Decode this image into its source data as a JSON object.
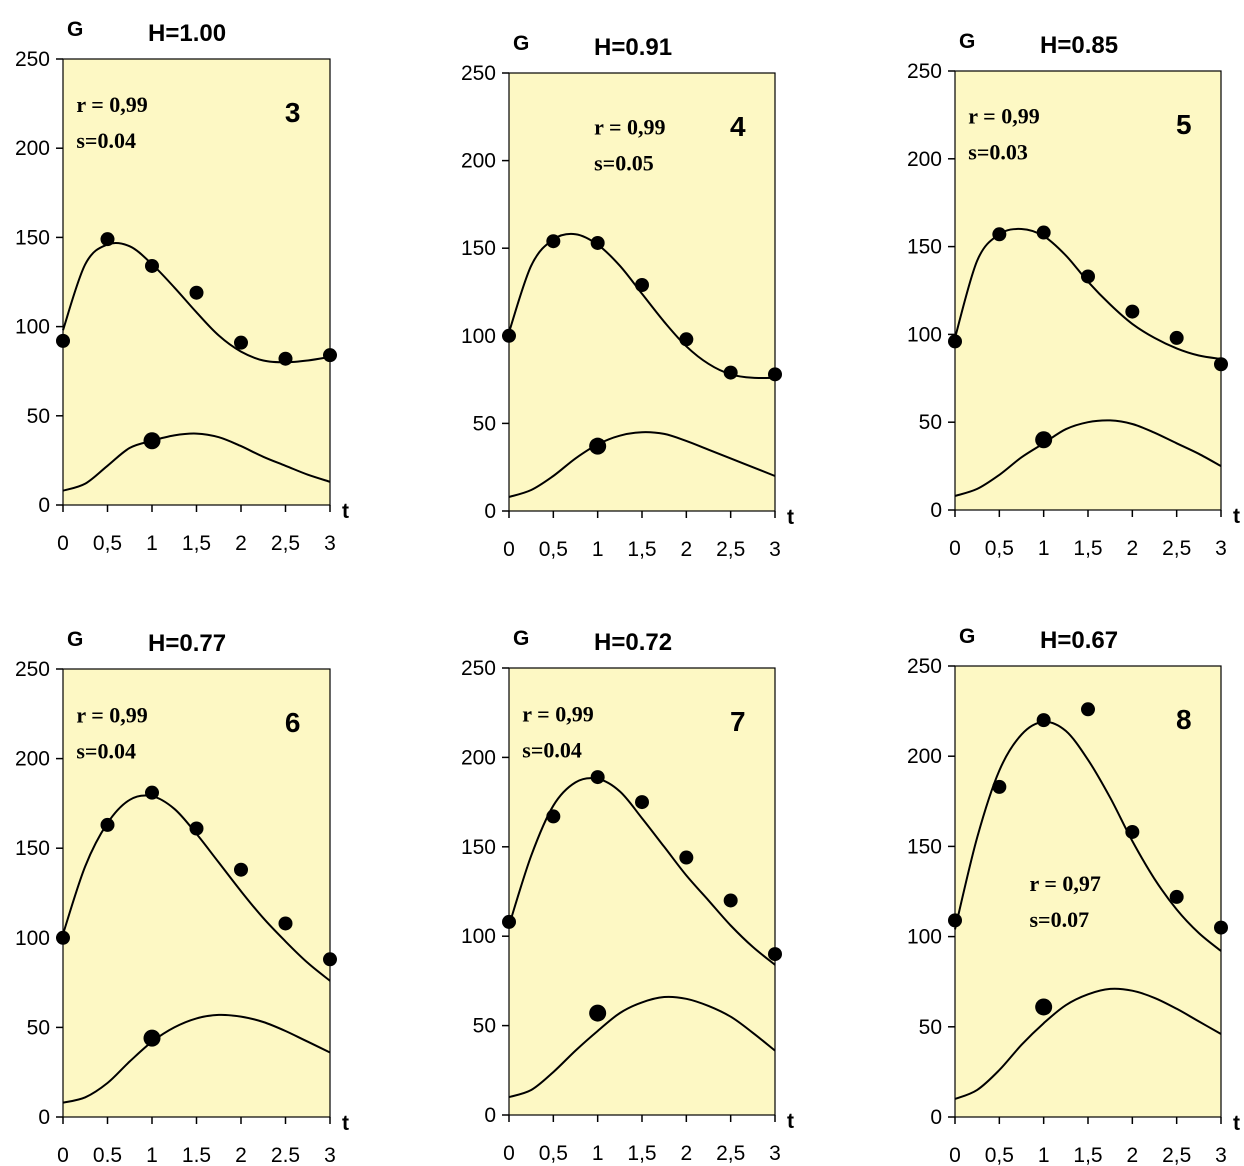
{
  "chart_data": [
    {
      "type": "line",
      "title": "H=1.00",
      "ylabel": "G",
      "xlabel": "t",
      "panel_number": "3",
      "stats": {
        "r": "r = 0,99",
        "s": "s=0.04"
      },
      "xlim": [
        0,
        3
      ],
      "ylim": [
        0,
        250
      ],
      "x_ticks": [
        "0",
        "0,5",
        "1",
        "1,5",
        "2",
        "2,5",
        "3"
      ],
      "y_ticks": [
        "0",
        "50",
        "100",
        "150",
        "200",
        "250"
      ],
      "grid": false,
      "series": [
        {
          "x": [
            0,
            0.5,
            1,
            1.5,
            2,
            2.5,
            3
          ],
          "values": [
            92,
            149,
            134,
            119,
            91,
            82,
            84
          ]
        },
        {
          "x": [
            1
          ],
          "values": [
            36
          ]
        }
      ],
      "curves": [
        {
          "x": [
            0,
            0.25,
            0.5,
            0.75,
            1,
            1.25,
            1.5,
            1.75,
            2,
            2.25,
            2.5,
            2.75,
            3
          ],
          "values": [
            98,
            135,
            146,
            145,
            135,
            122,
            108,
            95,
            86,
            81,
            80,
            81,
            83
          ]
        },
        {
          "x": [
            0,
            0.25,
            0.5,
            0.75,
            1,
            1.25,
            1.5,
            1.75,
            2,
            2.25,
            2.5,
            2.75,
            3
          ],
          "values": [
            8,
            12,
            22,
            32,
            36,
            39,
            40,
            38,
            33,
            27,
            22,
            17,
            13
          ]
        }
      ]
    },
    {
      "type": "line",
      "title": "H=0.91",
      "ylabel": "G",
      "xlabel": "t",
      "panel_number": "4",
      "stats": {
        "r": "r = 0,99",
        "s": "s=0.05"
      },
      "xlim": [
        0,
        3
      ],
      "ylim": [
        0,
        250
      ],
      "x_ticks": [
        "0",
        "0,5",
        "1",
        "1,5",
        "2",
        "2,5",
        "3"
      ],
      "y_ticks": [
        "0",
        "50",
        "100",
        "150",
        "200",
        "250"
      ],
      "grid": false,
      "series": [
        {
          "x": [
            0,
            0.5,
            1,
            1.5,
            2,
            2.5,
            3
          ],
          "values": [
            100,
            154,
            153,
            129,
            98,
            79,
            78
          ]
        },
        {
          "x": [
            1
          ],
          "values": [
            37
          ]
        }
      ],
      "curves": [
        {
          "x": [
            0,
            0.25,
            0.5,
            0.75,
            1,
            1.25,
            1.5,
            1.75,
            2,
            2.25,
            2.5,
            2.75,
            3
          ],
          "values": [
            102,
            140,
            155,
            158,
            152,
            140,
            124,
            108,
            94,
            84,
            78,
            76,
            76
          ]
        },
        {
          "x": [
            0,
            0.25,
            0.5,
            0.75,
            1,
            1.25,
            1.5,
            1.75,
            2,
            2.25,
            2.5,
            2.75,
            3
          ],
          "values": [
            8,
            12,
            20,
            30,
            38,
            43,
            45,
            44,
            40,
            35,
            30,
            25,
            20
          ]
        }
      ]
    },
    {
      "type": "line",
      "title": "H=0.85",
      "ylabel": "G",
      "xlabel": "t",
      "panel_number": "5",
      "stats": {
        "r": "r = 0,99",
        "s": "s=0.03"
      },
      "xlim": [
        0,
        3
      ],
      "ylim": [
        0,
        250
      ],
      "x_ticks": [
        "0",
        "0,5",
        "1",
        "1,5",
        "2",
        "2,5",
        "3"
      ],
      "y_ticks": [
        "0",
        "50",
        "100",
        "150",
        "200",
        "250"
      ],
      "grid": false,
      "series": [
        {
          "x": [
            0,
            0.5,
            1,
            1.5,
            2,
            2.5,
            3
          ],
          "values": [
            96,
            157,
            158,
            133,
            113,
            98,
            83
          ]
        },
        {
          "x": [
            1
          ],
          "values": [
            40
          ]
        }
      ],
      "curves": [
        {
          "x": [
            0,
            0.25,
            0.5,
            0.75,
            1,
            1.25,
            1.5,
            1.75,
            2,
            2.25,
            2.5,
            2.75,
            3
          ],
          "values": [
            98,
            142,
            157,
            160,
            156,
            145,
            130,
            117,
            106,
            98,
            92,
            88,
            86
          ]
        },
        {
          "x": [
            0,
            0.25,
            0.5,
            0.75,
            1,
            1.25,
            1.5,
            1.75,
            2,
            2.25,
            2.5,
            2.75,
            3
          ],
          "values": [
            8,
            12,
            20,
            30,
            38,
            46,
            50,
            51,
            49,
            44,
            38,
            32,
            25
          ]
        }
      ]
    },
    {
      "type": "line",
      "title": "H=0.77",
      "ylabel": "G",
      "xlabel": "t",
      "panel_number": "6",
      "stats": {
        "r": "r = 0,99",
        "s": "s=0.04"
      },
      "xlim": [
        0,
        3
      ],
      "ylim": [
        0,
        250
      ],
      "x_ticks": [
        "0",
        "0.5",
        "1",
        "1.5",
        "2",
        "2.5",
        "3"
      ],
      "y_ticks": [
        "0",
        "50",
        "100",
        "150",
        "200",
        "250"
      ],
      "grid": false,
      "series": [
        {
          "x": [
            0,
            0.5,
            1,
            1.5,
            2,
            2.5,
            3
          ],
          "values": [
            100,
            163,
            181,
            161,
            138,
            108,
            88
          ]
        },
        {
          "x": [
            1
          ],
          "values": [
            44
          ]
        }
      ],
      "curves": [
        {
          "x": [
            0,
            0.25,
            0.5,
            0.75,
            1,
            1.25,
            1.5,
            1.75,
            2,
            2.25,
            2.5,
            2.75,
            3
          ],
          "values": [
            102,
            140,
            164,
            177,
            179,
            172,
            158,
            142,
            126,
            111,
            98,
            86,
            76
          ]
        },
        {
          "x": [
            0,
            0.25,
            0.5,
            0.75,
            1,
            1.25,
            1.5,
            1.75,
            2,
            2.25,
            2.5,
            2.75,
            3
          ],
          "values": [
            8,
            11,
            19,
            31,
            42,
            50,
            55,
            57,
            56,
            53,
            48,
            42,
            36
          ]
        }
      ]
    },
    {
      "type": "line",
      "title": "H=0.72",
      "ylabel": "G",
      "xlabel": "t",
      "panel_number": "7",
      "stats": {
        "r": "r = 0,99",
        "s": "s=0.04"
      },
      "xlim": [
        0,
        3
      ],
      "ylim": [
        0,
        250
      ],
      "x_ticks": [
        "0",
        "0,5",
        "1",
        "1,5",
        "2",
        "2,5",
        "3"
      ],
      "y_ticks": [
        "0",
        "50",
        "100",
        "150",
        "200",
        "250"
      ],
      "grid": false,
      "series": [
        {
          "x": [
            0,
            0.5,
            1,
            1.5,
            2,
            2.5,
            3
          ],
          "values": [
            108,
            167,
            189,
            175,
            144,
            120,
            90
          ]
        },
        {
          "x": [
            1
          ],
          "values": [
            57
          ]
        }
      ],
      "curves": [
        {
          "x": [
            0,
            0.25,
            0.5,
            0.75,
            1,
            1.25,
            1.5,
            1.75,
            2,
            2.25,
            2.5,
            2.75,
            3
          ],
          "values": [
            106,
            145,
            173,
            186,
            188,
            181,
            166,
            150,
            134,
            120,
            106,
            94,
            84
          ]
        },
        {
          "x": [
            0,
            0.25,
            0.5,
            0.75,
            1,
            1.25,
            1.5,
            1.75,
            2,
            2.25,
            2.5,
            2.75,
            3
          ],
          "values": [
            10,
            14,
            24,
            36,
            47,
            57,
            63,
            66,
            65,
            61,
            55,
            46,
            36
          ]
        }
      ]
    },
    {
      "type": "line",
      "title": "H=0.67",
      "ylabel": "G",
      "xlabel": "t",
      "panel_number": "8",
      "stats": {
        "r": "r = 0,97",
        "s": "s=0.07"
      },
      "xlim": [
        0,
        3
      ],
      "ylim": [
        0,
        250
      ],
      "x_ticks": [
        "0",
        "0,5",
        "1",
        "1,5",
        "2",
        "2,5",
        "3"
      ],
      "y_ticks": [
        "0",
        "50",
        "100",
        "150",
        "200",
        "250"
      ],
      "grid": false,
      "series": [
        {
          "x": [
            0,
            0.5,
            1,
            1.5,
            2,
            2.5,
            3
          ],
          "values": [
            109,
            183,
            220,
            226,
            158,
            122,
            105
          ]
        },
        {
          "x": [
            1
          ],
          "values": [
            61
          ]
        }
      ],
      "curves": [
        {
          "x": [
            0,
            0.25,
            0.5,
            0.75,
            1,
            1.25,
            1.5,
            1.75,
            2,
            2.25,
            2.5,
            2.75,
            3
          ],
          "values": [
            104,
            155,
            192,
            212,
            219,
            214,
            198,
            177,
            153,
            132,
            115,
            102,
            92
          ]
        },
        {
          "x": [
            0,
            0.25,
            0.5,
            0.75,
            1,
            1.25,
            1.5,
            1.75,
            2,
            2.25,
            2.5,
            2.75,
            3
          ],
          "values": [
            10,
            15,
            26,
            40,
            52,
            62,
            68,
            71,
            70,
            66,
            60,
            53,
            46
          ]
        }
      ]
    }
  ],
  "colors": {
    "plot_background": "#fdf8c4",
    "ink": "#000000"
  }
}
